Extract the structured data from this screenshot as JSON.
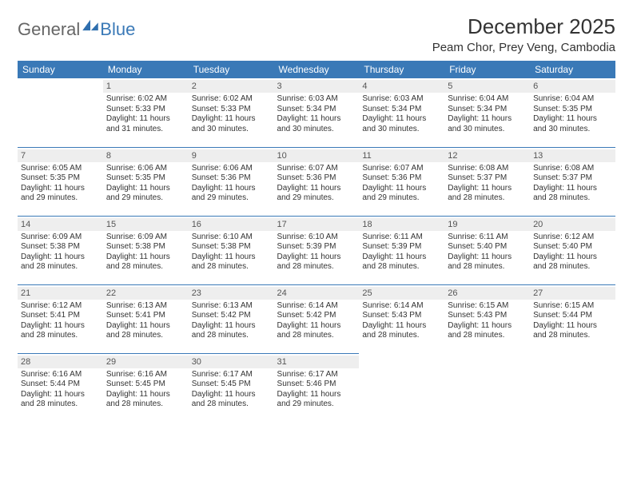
{
  "brand": {
    "part1": "General",
    "part2": "Blue"
  },
  "title": "December 2025",
  "location": "Peam Chor, Prey Veng, Cambodia",
  "colors": {
    "header_bg": "#3a79b7",
    "header_text": "#ffffff",
    "daynum_bg": "#eeeeee",
    "border": "#3a79b7",
    "text": "#333333",
    "background": "#ffffff"
  },
  "weekdays": [
    "Sunday",
    "Monday",
    "Tuesday",
    "Wednesday",
    "Thursday",
    "Friday",
    "Saturday"
  ],
  "labels": {
    "sunrise": "Sunrise:",
    "sunset": "Sunset:",
    "daylight": "Daylight:"
  },
  "weeks": [
    [
      null,
      {
        "day": "1",
        "sunrise": "6:02 AM",
        "sunset": "5:33 PM",
        "daylight": "11 hours and 31 minutes."
      },
      {
        "day": "2",
        "sunrise": "6:02 AM",
        "sunset": "5:33 PM",
        "daylight": "11 hours and 30 minutes."
      },
      {
        "day": "3",
        "sunrise": "6:03 AM",
        "sunset": "5:34 PM",
        "daylight": "11 hours and 30 minutes."
      },
      {
        "day": "4",
        "sunrise": "6:03 AM",
        "sunset": "5:34 PM",
        "daylight": "11 hours and 30 minutes."
      },
      {
        "day": "5",
        "sunrise": "6:04 AM",
        "sunset": "5:34 PM",
        "daylight": "11 hours and 30 minutes."
      },
      {
        "day": "6",
        "sunrise": "6:04 AM",
        "sunset": "5:35 PM",
        "daylight": "11 hours and 30 minutes."
      }
    ],
    [
      {
        "day": "7",
        "sunrise": "6:05 AM",
        "sunset": "5:35 PM",
        "daylight": "11 hours and 29 minutes."
      },
      {
        "day": "8",
        "sunrise": "6:06 AM",
        "sunset": "5:35 PM",
        "daylight": "11 hours and 29 minutes."
      },
      {
        "day": "9",
        "sunrise": "6:06 AM",
        "sunset": "5:36 PM",
        "daylight": "11 hours and 29 minutes."
      },
      {
        "day": "10",
        "sunrise": "6:07 AM",
        "sunset": "5:36 PM",
        "daylight": "11 hours and 29 minutes."
      },
      {
        "day": "11",
        "sunrise": "6:07 AM",
        "sunset": "5:36 PM",
        "daylight": "11 hours and 29 minutes."
      },
      {
        "day": "12",
        "sunrise": "6:08 AM",
        "sunset": "5:37 PM",
        "daylight": "11 hours and 28 minutes."
      },
      {
        "day": "13",
        "sunrise": "6:08 AM",
        "sunset": "5:37 PM",
        "daylight": "11 hours and 28 minutes."
      }
    ],
    [
      {
        "day": "14",
        "sunrise": "6:09 AM",
        "sunset": "5:38 PM",
        "daylight": "11 hours and 28 minutes."
      },
      {
        "day": "15",
        "sunrise": "6:09 AM",
        "sunset": "5:38 PM",
        "daylight": "11 hours and 28 minutes."
      },
      {
        "day": "16",
        "sunrise": "6:10 AM",
        "sunset": "5:38 PM",
        "daylight": "11 hours and 28 minutes."
      },
      {
        "day": "17",
        "sunrise": "6:10 AM",
        "sunset": "5:39 PM",
        "daylight": "11 hours and 28 minutes."
      },
      {
        "day": "18",
        "sunrise": "6:11 AM",
        "sunset": "5:39 PM",
        "daylight": "11 hours and 28 minutes."
      },
      {
        "day": "19",
        "sunrise": "6:11 AM",
        "sunset": "5:40 PM",
        "daylight": "11 hours and 28 minutes."
      },
      {
        "day": "20",
        "sunrise": "6:12 AM",
        "sunset": "5:40 PM",
        "daylight": "11 hours and 28 minutes."
      }
    ],
    [
      {
        "day": "21",
        "sunrise": "6:12 AM",
        "sunset": "5:41 PM",
        "daylight": "11 hours and 28 minutes."
      },
      {
        "day": "22",
        "sunrise": "6:13 AM",
        "sunset": "5:41 PM",
        "daylight": "11 hours and 28 minutes."
      },
      {
        "day": "23",
        "sunrise": "6:13 AM",
        "sunset": "5:42 PM",
        "daylight": "11 hours and 28 minutes."
      },
      {
        "day": "24",
        "sunrise": "6:14 AM",
        "sunset": "5:42 PM",
        "daylight": "11 hours and 28 minutes."
      },
      {
        "day": "25",
        "sunrise": "6:14 AM",
        "sunset": "5:43 PM",
        "daylight": "11 hours and 28 minutes."
      },
      {
        "day": "26",
        "sunrise": "6:15 AM",
        "sunset": "5:43 PM",
        "daylight": "11 hours and 28 minutes."
      },
      {
        "day": "27",
        "sunrise": "6:15 AM",
        "sunset": "5:44 PM",
        "daylight": "11 hours and 28 minutes."
      }
    ],
    [
      {
        "day": "28",
        "sunrise": "6:16 AM",
        "sunset": "5:44 PM",
        "daylight": "11 hours and 28 minutes."
      },
      {
        "day": "29",
        "sunrise": "6:16 AM",
        "sunset": "5:45 PM",
        "daylight": "11 hours and 28 minutes."
      },
      {
        "day": "30",
        "sunrise": "6:17 AM",
        "sunset": "5:45 PM",
        "daylight": "11 hours and 28 minutes."
      },
      {
        "day": "31",
        "sunrise": "6:17 AM",
        "sunset": "5:46 PM",
        "daylight": "11 hours and 29 minutes."
      },
      null,
      null,
      null
    ]
  ]
}
